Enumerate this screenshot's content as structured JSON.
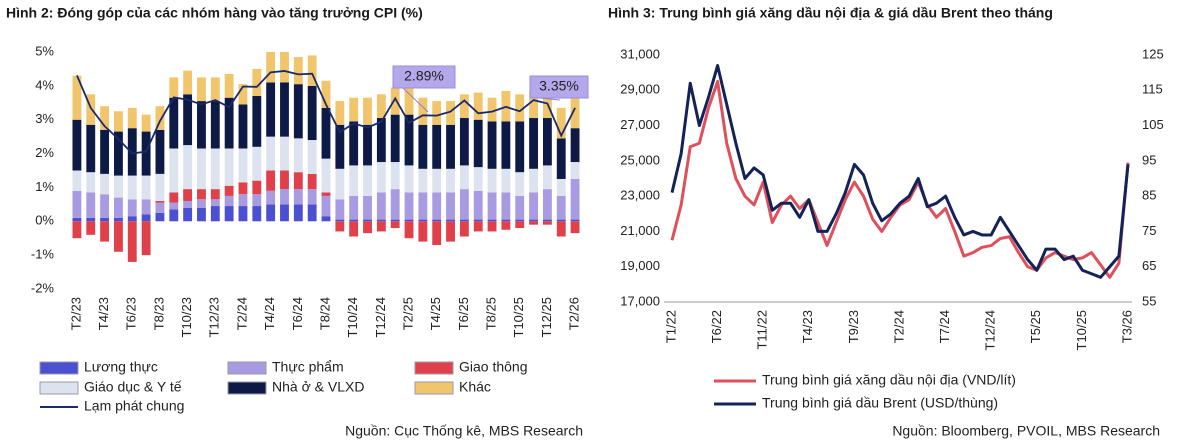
{
  "chart_data": [
    {
      "type": "bar",
      "stacked": true,
      "title": "Hình 2: Đóng góp của các nhóm hàng vào tăng trưởng CPI (%)",
      "source": "Nguồn: Cục Thống kê, MBS Research",
      "categories": [
        "T2/23",
        null,
        "T4/23",
        null,
        "T6/23",
        null,
        "T8/23",
        null,
        "T10/23",
        null,
        "T12/23",
        null,
        "T2/24",
        null,
        "T4/24",
        null,
        "T6/24",
        null,
        "T8/24",
        null,
        "T10/24",
        null,
        "T12/24",
        null,
        "T2/25",
        null,
        "T4/25",
        null,
        "T6/25",
        null,
        "T8/25",
        null,
        "T10/25",
        null,
        "T12/25",
        null,
        "T2/26"
      ],
      "ylim": [
        -2,
        5
      ],
      "yticks": [
        {
          "value": 5,
          "label": "5%"
        },
        {
          "value": 4,
          "label": "4%"
        },
        {
          "value": 3,
          "label": "3%"
        },
        {
          "value": 2,
          "label": "2%"
        },
        {
          "value": 1,
          "label": "1%"
        },
        {
          "value": 0,
          "label": "0%"
        },
        {
          "value": -1,
          "label": "-1%"
        },
        {
          "value": -2,
          "label": "-2%"
        }
      ],
      "annotations": [
        "2.89%",
        "3.35%"
      ],
      "series": [
        {
          "name": "Lương thực",
          "color": "#4b50d0",
          "values": [
            0.1,
            0.1,
            0.1,
            0.1,
            0.15,
            0.2,
            0.25,
            0.35,
            0.4,
            0.4,
            0.45,
            0.45,
            0.45,
            0.45,
            0.5,
            0.5,
            0.5,
            0.5,
            0.15,
            0.05,
            0.05,
            0.05,
            0.05,
            0.05,
            0.05,
            0.05,
            0.05,
            0.05,
            0.05,
            0.05,
            0.05,
            0.05,
            0.05,
            0.05,
            0.05,
            0.05,
            0.05
          ]
        },
        {
          "name": "Thực phẩm",
          "color": "#a99be2",
          "values": [
            0.8,
            0.75,
            0.7,
            0.6,
            0.5,
            0.45,
            0.3,
            0.2,
            0.2,
            0.25,
            0.2,
            0.3,
            0.35,
            0.35,
            0.4,
            0.45,
            0.45,
            0.45,
            0.6,
            0.6,
            0.7,
            0.7,
            0.8,
            0.9,
            0.8,
            0.8,
            0.8,
            0.8,
            0.9,
            0.85,
            0.8,
            0.8,
            0.7,
            0.8,
            0.9,
            0.7,
            1.2
          ]
        },
        {
          "name": "Giao thông",
          "color": "#e0404a",
          "values": [
            -0.5,
            -0.4,
            -0.6,
            -0.9,
            -1.2,
            -1.0,
            0.05,
            0.3,
            0.35,
            0.3,
            0.3,
            0.3,
            0.35,
            0.4,
            0.6,
            0.55,
            0.5,
            0.45,
            0.1,
            -0.3,
            -0.45,
            -0.35,
            -0.3,
            -0.2,
            -0.5,
            -0.6,
            -0.7,
            -0.6,
            -0.45,
            -0.3,
            -0.3,
            -0.25,
            -0.2,
            -0.1,
            -0.1,
            -0.45,
            -0.35
          ]
        },
        {
          "name": "Giáo dục & Y tế",
          "color": "#dce2ee",
          "values": [
            0.6,
            0.6,
            0.6,
            0.65,
            0.7,
            0.7,
            0.8,
            1.3,
            1.3,
            1.2,
            1.2,
            1.1,
            1.0,
            1.0,
            1.0,
            1.0,
            1.0,
            1.0,
            1.0,
            0.9,
            0.9,
            0.9,
            0.9,
            0.8,
            0.8,
            0.7,
            0.7,
            0.7,
            0.7,
            0.7,
            0.7,
            0.7,
            0.7,
            0.7,
            0.7,
            0.5,
            0.5
          ]
        },
        {
          "name": "Nhà ở & VLXD",
          "color": "#0d1a45",
          "values": [
            1.5,
            1.4,
            1.3,
            1.3,
            1.4,
            1.3,
            1.3,
            1.5,
            1.5,
            1.4,
            1.4,
            1.5,
            1.3,
            1.5,
            1.6,
            1.6,
            1.6,
            1.6,
            1.5,
            1.3,
            1.3,
            1.2,
            1.3,
            1.4,
            1.5,
            1.3,
            1.3,
            1.3,
            1.4,
            1.4,
            1.4,
            1.4,
            1.5,
            1.5,
            1.4,
            1.2,
            1.0
          ]
        },
        {
          "name": "Khác",
          "color": "#f1c56b",
          "values": [
            1.3,
            0.9,
            0.7,
            0.6,
            0.6,
            0.5,
            0.7,
            0.6,
            0.7,
            0.7,
            0.7,
            0.7,
            0.6,
            0.8,
            0.9,
            0.9,
            0.8,
            0.9,
            0.8,
            0.7,
            0.7,
            0.8,
            0.7,
            0.8,
            0.9,
            0.8,
            0.7,
            0.7,
            0.7,
            0.8,
            0.7,
            0.9,
            0.8,
            0.8,
            0.8,
            0.9,
            1.0
          ]
        },
        {
          "name": "Lạm phát chung",
          "type": "line",
          "color": "#1a2a6c",
          "values": [
            4.31,
            3.35,
            2.81,
            2.43,
            2.0,
            2.06,
            2.96,
            3.66,
            3.59,
            3.45,
            3.58,
            3.37,
            3.98,
            3.97,
            4.4,
            4.44,
            4.34,
            4.36,
            3.45,
            2.63,
            2.89,
            2.77,
            2.94,
            3.63,
            2.91,
            3.13,
            3.12,
            3.24,
            3.57,
            3.19,
            3.24,
            3.38,
            3.25,
            3.58,
            3.48,
            2.53,
            3.35
          ]
        }
      ]
    },
    {
      "type": "line",
      "title": "Hình 3: Trung bình giá xăng dầu nội địa & giá dầu Brent theo tháng",
      "source": "Nguồn: Bloomberg, PVOIL, MBS Research",
      "categories": [
        "T1/22",
        null,
        null,
        null,
        null,
        "T6/22",
        null,
        null,
        null,
        null,
        "T11/22",
        null,
        null,
        null,
        null,
        "T4/23",
        null,
        null,
        null,
        null,
        "T9/23",
        null,
        null,
        null,
        null,
        "T2/24",
        null,
        null,
        null,
        null,
        "T7/24",
        null,
        null,
        null,
        null,
        "T12/24",
        null,
        null,
        null,
        null,
        "T5/25",
        null,
        null,
        null,
        null,
        "T10/25",
        null,
        null,
        null,
        null,
        "T3/26"
      ],
      "ylim": [
        17000,
        31000
      ],
      "yticks": [
        {
          "value": 31000,
          "label": "31,000"
        },
        {
          "value": 29000,
          "label": "29,000"
        },
        {
          "value": 27000,
          "label": "27,000"
        },
        {
          "value": 25000,
          "label": "25,000"
        },
        {
          "value": 23000,
          "label": "23,000"
        },
        {
          "value": 21000,
          "label": "21,000"
        },
        {
          "value": 19000,
          "label": "19,000"
        },
        {
          "value": 17000,
          "label": "17,000"
        }
      ],
      "y2lim": [
        55,
        125
      ],
      "y2ticks": [
        125,
        115,
        105,
        95,
        85,
        75,
        65,
        55
      ],
      "series": [
        {
          "name": "Trung bình giá xăng dầu nội địa (VND/lít)",
          "color": "#e0505a",
          "values": [
            20500,
            22500,
            25800,
            26000,
            28000,
            29500,
            26000,
            24000,
            23000,
            22500,
            23800,
            21500,
            22500,
            23000,
            22300,
            22800,
            21500,
            20200,
            21500,
            22800,
            23800,
            23000,
            21700,
            21000,
            21800,
            22500,
            22800,
            23800,
            22500,
            21800,
            22300,
            21000,
            19600,
            19800,
            20100,
            20200,
            20600,
            20700,
            19800,
            19000,
            18800,
            19500,
            19800,
            19600,
            19400,
            19500,
            19800,
            19100,
            18400,
            19200,
            24900
          ]
        },
        {
          "name": "Trung bình giá dầu Brent (USD/thùng)",
          "color": "#13235a",
          "axis": "y2",
          "values": [
            86,
            97,
            117,
            105,
            113,
            122,
            111,
            100,
            90,
            93,
            91,
            81,
            83,
            83,
            79,
            84,
            75,
            75,
            80,
            86,
            94,
            91,
            83,
            78,
            80,
            83,
            85,
            90,
            82,
            83,
            85,
            79,
            74,
            75,
            74,
            74,
            79,
            75,
            71,
            67,
            64,
            70,
            70,
            67,
            68,
            64,
            63,
            62,
            65,
            68,
            94
          ]
        }
      ]
    }
  ]
}
